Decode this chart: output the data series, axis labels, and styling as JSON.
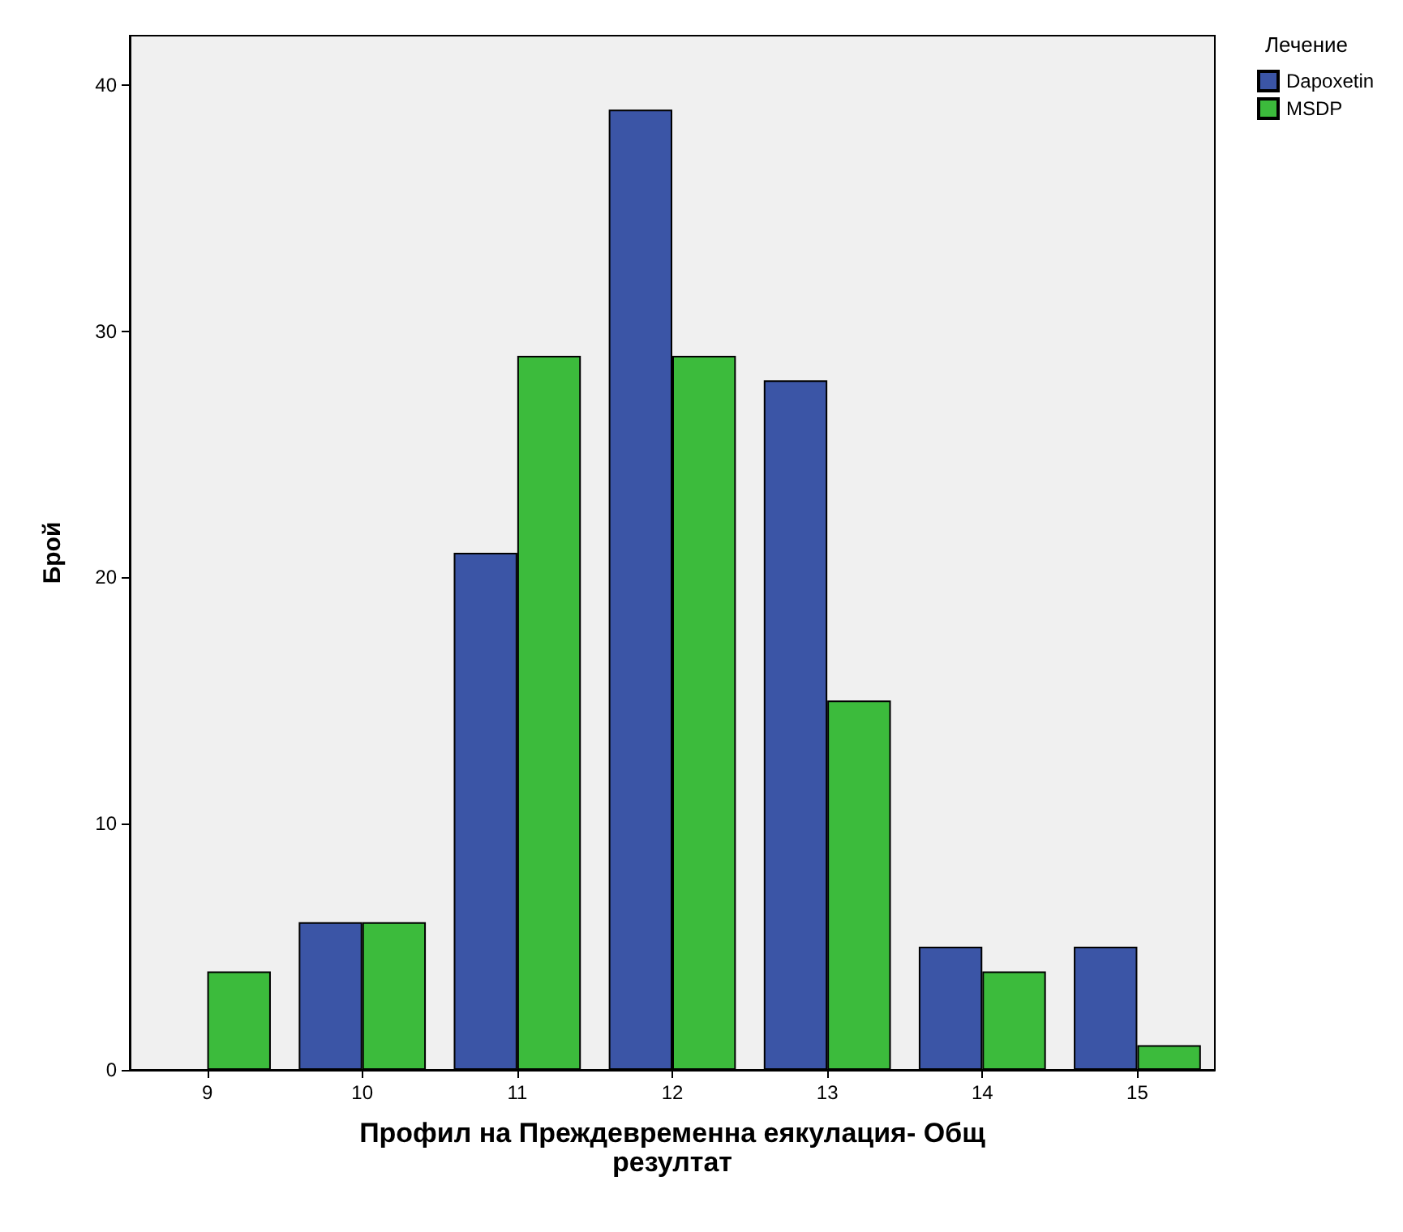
{
  "chart_data": {
    "type": "bar",
    "xlabel": "Профил на Преждевременна еякулация- Общ\nрезултат",
    "ylabel": "Брой",
    "legend_title": "Лечение",
    "categories": [
      "9",
      "10",
      "11",
      "12",
      "13",
      "14",
      "15"
    ],
    "series": [
      {
        "name": "Dapoxetin",
        "color": "#3b55a6",
        "values": [
          0,
          6,
          21,
          39,
          28,
          5,
          5
        ]
      },
      {
        "name": "MSDP",
        "color": "#3cbb3c",
        "values": [
          4,
          6,
          29,
          29,
          15,
          4,
          1
        ]
      }
    ],
    "ylim": [
      0,
      42
    ],
    "yticks": [
      0,
      10,
      20,
      30,
      40
    ],
    "grid": false,
    "legend": "top right"
  }
}
